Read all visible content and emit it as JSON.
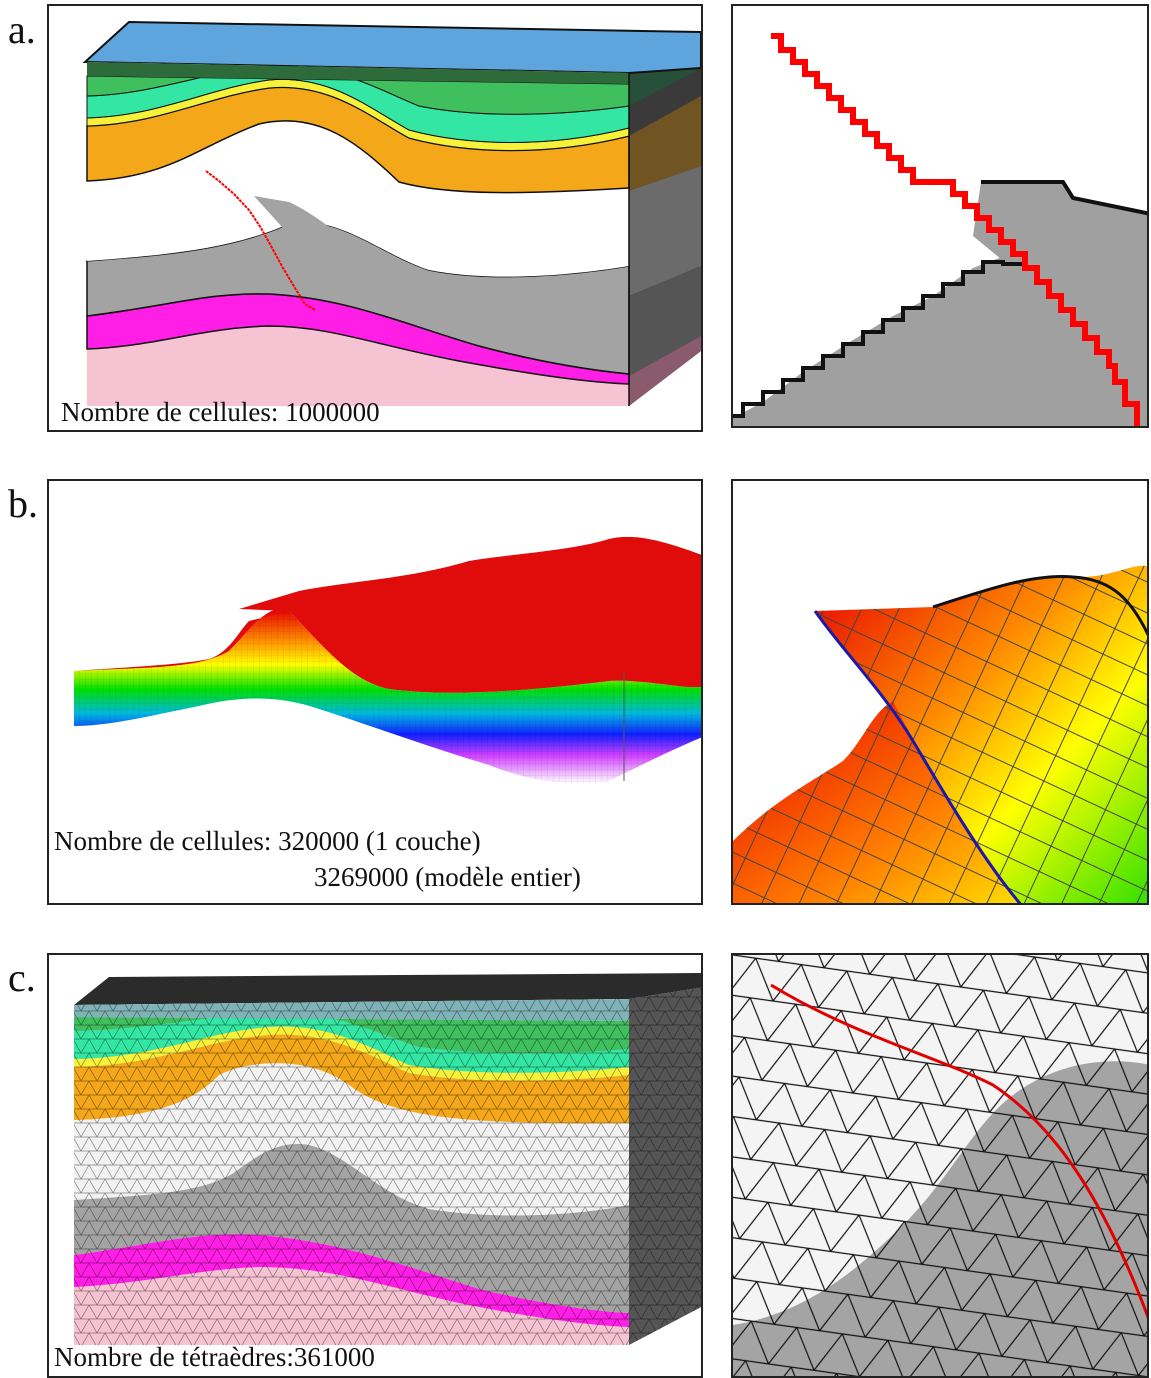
{
  "rows": [
    {
      "label": "a.",
      "caption": [
        "Nombre de cellules: 1000000"
      ]
    },
    {
      "label": "b.",
      "caption": [
        "Nombre de cellules: 320000 (1 couche)",
        "3269000 (modèle entier)"
      ]
    },
    {
      "label": "c.",
      "caption": [
        "Nombre de tétraèdres:361000"
      ]
    }
  ],
  "colors": {
    "water": "#5ea5dd",
    "dark_green": "#2e6b3a",
    "green": "#3fbf5e",
    "aqua": "#34e6a4",
    "yellow": "#f6f23a",
    "orange": "#f5a71a",
    "white": "#ffffff",
    "gray": "#9a9a9a",
    "magenta": "#ff1ee6",
    "pink": "#f5c3d2",
    "fault": "#ff0000",
    "outline": "#111111"
  }
}
